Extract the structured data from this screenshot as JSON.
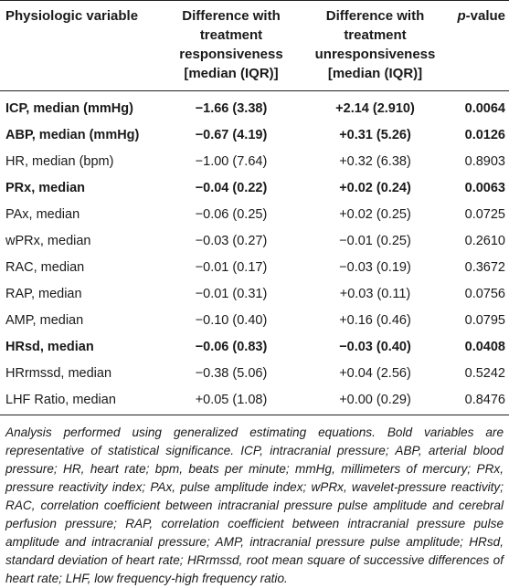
{
  "table": {
    "headers": {
      "variable": "Physiologic variable",
      "responsive_line1": "Difference with",
      "responsive_line2": "treatment",
      "responsive_line3": "responsiveness",
      "responsive_line4": "[median (IQR)]",
      "unresponsive_line1": "Difference with",
      "unresponsive_line2": "treatment",
      "unresponsive_line3": "unresponsiveness",
      "unresponsive_line4": "[median (IQR)]",
      "p_italic": "p",
      "p_rest": "-value"
    },
    "rows": [
      {
        "variable": "ICP, median (mmHg)",
        "responsive": "−1.66 (3.38)",
        "unresponsive": "+2.14 (2.910)",
        "p": "0.0064",
        "bold": true
      },
      {
        "variable": "ABP, median (mmHg)",
        "responsive": "−0.67 (4.19)",
        "unresponsive": "+0.31 (5.26)",
        "p": "0.0126",
        "bold": true
      },
      {
        "variable": "HR, median (bpm)",
        "responsive": "−1.00 (7.64)",
        "unresponsive": "+0.32 (6.38)",
        "p": "0.8903",
        "bold": false
      },
      {
        "variable": "PRx, median",
        "responsive": "−0.04 (0.22)",
        "unresponsive": "+0.02 (0.24)",
        "p": "0.0063",
        "bold": true
      },
      {
        "variable": "PAx, median",
        "responsive": "−0.06 (0.25)",
        "unresponsive": "+0.02 (0.25)",
        "p": "0.0725",
        "bold": false
      },
      {
        "variable": "wPRx, median",
        "responsive": "−0.03 (0.27)",
        "unresponsive": "−0.01 (0.25)",
        "p": "0.2610",
        "bold": false
      },
      {
        "variable": "RAC, median",
        "responsive": "−0.01 (0.17)",
        "unresponsive": "−0.03 (0.19)",
        "p": "0.3672",
        "bold": false
      },
      {
        "variable": "RAP, median",
        "responsive": "−0.01 (0.31)",
        "unresponsive": "+0.03 (0.11)",
        "p": "0.0756",
        "bold": false
      },
      {
        "variable": "AMP, median",
        "responsive": "−0.10 (0.40)",
        "unresponsive": "+0.16 (0.46)",
        "p": "0.0795",
        "bold": false
      },
      {
        "variable": "HRsd, median",
        "responsive": "−0.06 (0.83)",
        "unresponsive": "−0.03 (0.40)",
        "p": "0.0408",
        "bold": true
      },
      {
        "variable": "HRrmssd, median",
        "responsive": "−0.38 (5.06)",
        "unresponsive": "+0.04 (2.56)",
        "p": "0.5242",
        "bold": false
      },
      {
        "variable": "LHF Ratio, median",
        "responsive": "+0.05 (1.08)",
        "unresponsive": "+0.00 (0.29)",
        "p": "0.8476",
        "bold": false
      }
    ]
  },
  "footnote": "Analysis performed using generalized estimating equations. Bold variables are representative of statistical significance. ICP, intracranial pressure; ABP, arterial blood pressure; HR, heart rate; bpm, beats per minute; mmHg, millimeters of mercury; PRx, pressure reactivity index; PAx, pulse amplitude index; wPRx, wavelet-pressure reactivity; RAC, correlation coefficient between intracranial pressure pulse amplitude and cerebral perfusion pressure; RAP, correlation coefficient between intracranial pressure pulse amplitude and intracranial pressure; AMP, intracranial pressure pulse amplitude; HRsd, standard deviation of heart rate; HRrmssd, root mean square of successive differences of heart rate; LHF, low frequency-high frequency ratio."
}
